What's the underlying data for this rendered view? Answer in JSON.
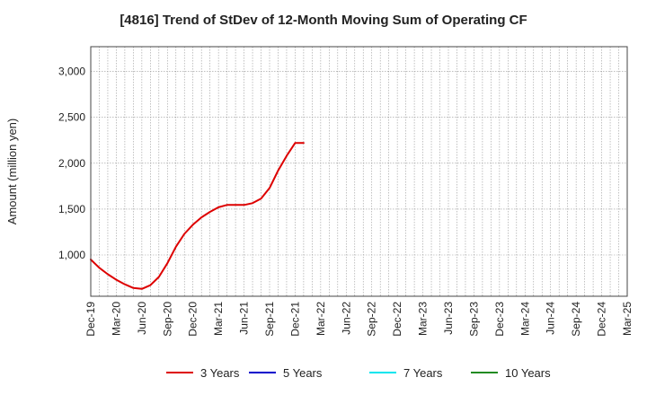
{
  "chart_data": {
    "type": "line",
    "title": "[4816]  Trend of StDev of 12-Month Moving Sum of Operating CF",
    "ylabel": "Amount (million yen)",
    "xlabel": "",
    "ylim": [
      550,
      3270
    ],
    "yticks": [
      1000,
      1500,
      2000,
      2500,
      3000
    ],
    "ytick_labels": [
      "1,000",
      "1,500",
      "2,000",
      "2,500",
      "3,000"
    ],
    "x_tick_labels": [
      "Dec-19",
      "Mar-20",
      "Jun-20",
      "Sep-20",
      "Dec-20",
      "Mar-21",
      "Jun-21",
      "Sep-21",
      "Dec-21",
      "Mar-22",
      "Jun-22",
      "Sep-22",
      "Dec-22",
      "Mar-23",
      "Jun-23",
      "Sep-23",
      "Dec-23",
      "Mar-24",
      "Jun-24",
      "Sep-24",
      "Dec-24",
      "Mar-25"
    ],
    "x_start": "2019-12",
    "x_end": "2025-03",
    "grid": true,
    "legend_position": "bottom",
    "series": [
      {
        "name": "3 Years",
        "color": "#dd0000",
        "points": [
          [
            "2019-12",
            950
          ],
          [
            "2020-01",
            860
          ],
          [
            "2020-02",
            790
          ],
          [
            "2020-03",
            730
          ],
          [
            "2020-04",
            680
          ],
          [
            "2020-05",
            640
          ],
          [
            "2020-06",
            630
          ],
          [
            "2020-07",
            670
          ],
          [
            "2020-08",
            760
          ],
          [
            "2020-09",
            910
          ],
          [
            "2020-10",
            1090
          ],
          [
            "2020-11",
            1230
          ],
          [
            "2020-12",
            1330
          ],
          [
            "2021-01",
            1410
          ],
          [
            "2021-02",
            1470
          ],
          [
            "2021-03",
            1520
          ],
          [
            "2021-04",
            1545
          ],
          [
            "2021-05",
            1545
          ],
          [
            "2021-06",
            1545
          ],
          [
            "2021-07",
            1565
          ],
          [
            "2021-08",
            1615
          ],
          [
            "2021-09",
            1730
          ],
          [
            "2021-10",
            1920
          ],
          [
            "2021-11",
            2080
          ],
          [
            "2021-12",
            2220
          ],
          [
            "2021-13",
            2220
          ]
        ]
      },
      {
        "name": "5 Years",
        "color": "#0000cc",
        "points": []
      },
      {
        "name": "7 Years",
        "color": "#00e5ee",
        "points": []
      },
      {
        "name": "10 Years",
        "color": "#228b22",
        "points": []
      }
    ]
  }
}
